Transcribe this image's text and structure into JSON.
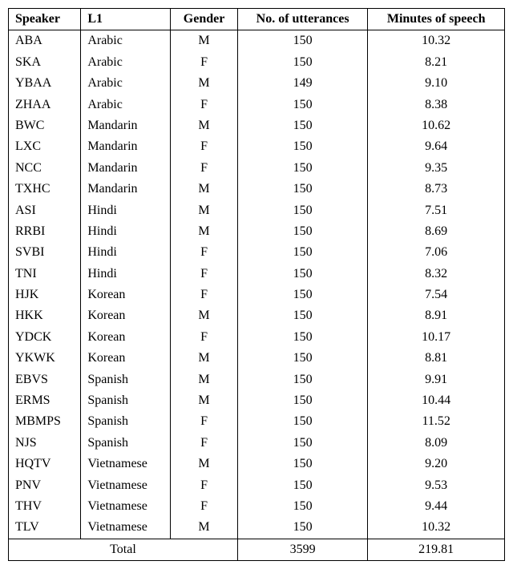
{
  "columns": [
    "Speaker",
    "L1",
    "Gender",
    "No. of utterances",
    "Minutes of speech"
  ],
  "rows": [
    [
      "ABA",
      "Arabic",
      "M",
      "150",
      "10.32"
    ],
    [
      "SKA",
      "Arabic",
      "F",
      "150",
      "8.21"
    ],
    [
      "YBAA",
      "Arabic",
      "M",
      "149",
      "9.10"
    ],
    [
      "ZHAA",
      "Arabic",
      "F",
      "150",
      "8.38"
    ],
    [
      "BWC",
      "Mandarin",
      "M",
      "150",
      "10.62"
    ],
    [
      "LXC",
      "Mandarin",
      "F",
      "150",
      "9.64"
    ],
    [
      "NCC",
      "Mandarin",
      "F",
      "150",
      "9.35"
    ],
    [
      "TXHC",
      "Mandarin",
      "M",
      "150",
      "8.73"
    ],
    [
      "ASI",
      "Hindi",
      "M",
      "150",
      "7.51"
    ],
    [
      "RRBI",
      "Hindi",
      "M",
      "150",
      "8.69"
    ],
    [
      "SVBI",
      "Hindi",
      "F",
      "150",
      "7.06"
    ],
    [
      "TNI",
      "Hindi",
      "F",
      "150",
      "8.32"
    ],
    [
      "HJK",
      "Korean",
      "F",
      "150",
      "7.54"
    ],
    [
      "HKK",
      "Korean",
      "M",
      "150",
      "8.91"
    ],
    [
      "YDCK",
      "Korean",
      "F",
      "150",
      "10.17"
    ],
    [
      "YKWK",
      "Korean",
      "M",
      "150",
      "8.81"
    ],
    [
      "EBVS",
      "Spanish",
      "M",
      "150",
      "9.91"
    ],
    [
      "ERMS",
      "Spanish",
      "M",
      "150",
      "10.44"
    ],
    [
      "MBMPS",
      "Spanish",
      "F",
      "150",
      "11.52"
    ],
    [
      "NJS",
      "Spanish",
      "F",
      "150",
      "8.09"
    ],
    [
      "HQTV",
      "Vietnamese",
      "M",
      "150",
      "9.20"
    ],
    [
      "PNV",
      "Vietnamese",
      "F",
      "150",
      "9.53"
    ],
    [
      "THV",
      "Vietnamese",
      "F",
      "150",
      "9.44"
    ],
    [
      "TLV",
      "Vietnamese",
      "M",
      "150",
      "10.32"
    ]
  ],
  "total": {
    "label": "Total",
    "utterances": "3599",
    "minutes": "219.81"
  }
}
